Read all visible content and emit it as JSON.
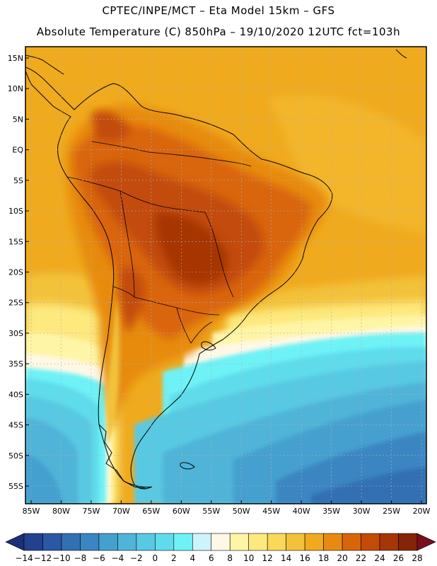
{
  "header": {
    "title": "CPTEC/INPE/MCT –  Eta Model 15km – GFS",
    "subtitle": "Absolute Temperature (C) 850hPa – 19/10/2020 12UTC fct=103h"
  },
  "map": {
    "lat_labels": [
      "15N",
      "10N",
      "5N",
      "EQ",
      "5S",
      "10S",
      "15S",
      "20S",
      "25S",
      "30S",
      "35S",
      "40S",
      "45S",
      "50S",
      "55S"
    ],
    "lon_labels": [
      "85W",
      "80W",
      "75W",
      "70W",
      "65W",
      "60W",
      "55W",
      "50W",
      "45W",
      "40W",
      "35W",
      "30W",
      "25W",
      "20W"
    ],
    "lat_range": [
      15,
      -55
    ],
    "lon_range": [
      -85,
      -20
    ]
  },
  "colorbar": {
    "labels": [
      "-14",
      "-12",
      "-10",
      "-8",
      "-6",
      "-4",
      "-2",
      "0",
      "2",
      "4",
      "6",
      "8",
      "10",
      "12",
      "14",
      "16",
      "18",
      "20",
      "22",
      "24",
      "26",
      "28"
    ],
    "colors": [
      "#23418f",
      "#2a58a4",
      "#3170b3",
      "#3a86c2",
      "#45a0cf",
      "#4fb4d8",
      "#59c9e3",
      "#5fdcec",
      "#6ef2f6",
      "#cdf3fb",
      "#fff8e6",
      "#fff5a6",
      "#fde97e",
      "#f9d85a",
      "#f3c23a",
      "#f0aa1d",
      "#e78b10",
      "#d9650b",
      "#c24b07",
      "#a63606",
      "#862407"
    ],
    "under_color": "#1c2f7a",
    "over_color": "#7a0e1e"
  }
}
